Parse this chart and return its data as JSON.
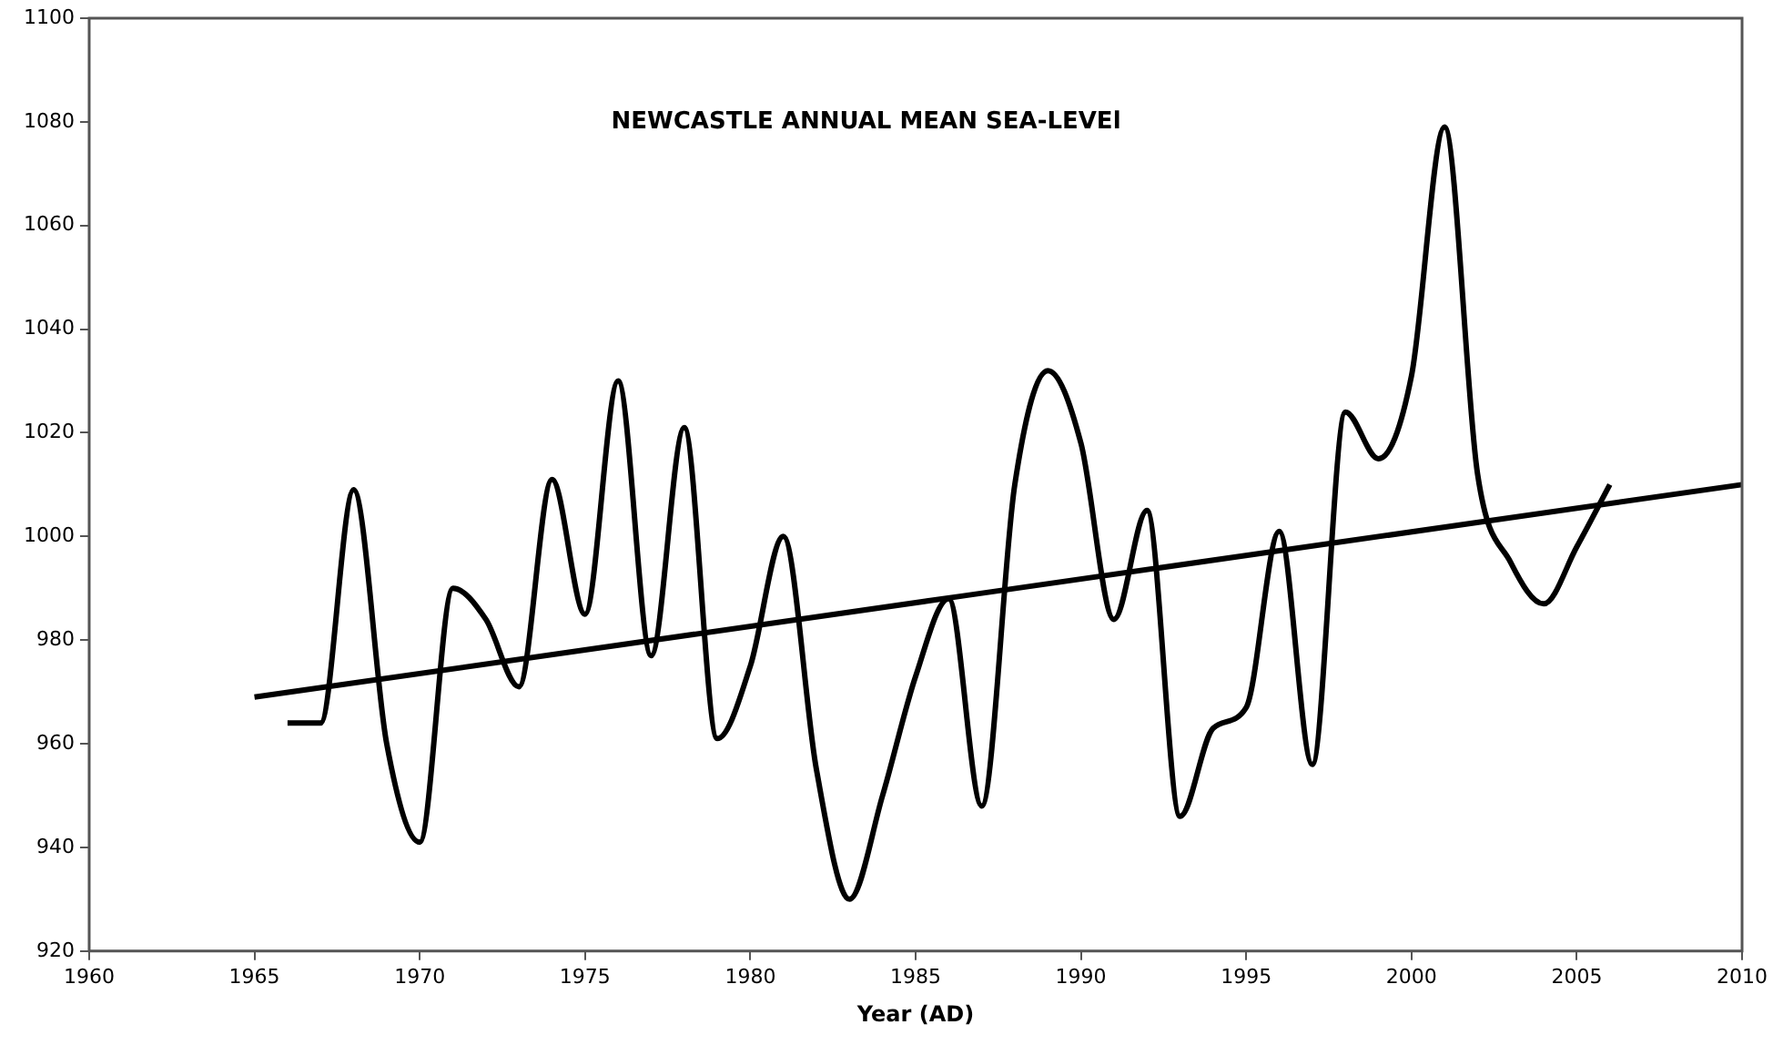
{
  "chart_data": {
    "type": "line",
    "title": "NEWCASTLE ANNUAL MEAN SEA-LEVEl",
    "xlabel": "Year (AD)",
    "x": [
      1966,
      1967,
      1968,
      1969,
      1970,
      1971,
      1972,
      1973,
      1974,
      1975,
      1976,
      1977,
      1978,
      1979,
      1980,
      1981,
      1982,
      1983,
      1984,
      1985,
      1986,
      1987,
      1988,
      1989,
      1990,
      1991,
      1992,
      1993,
      1994,
      1995,
      1996,
      1997,
      1998,
      1999,
      2000,
      2001,
      2002,
      2003,
      2004,
      2005,
      2006
    ],
    "series": [
      {
        "color": "#000000",
        "values": [
          964,
          964,
          1009,
          960,
          941,
          990,
          984,
          971,
          1011,
          985,
          1030,
          977,
          1021,
          961,
          975,
          1000,
          955,
          930,
          950,
          973,
          988,
          948,
          1010,
          1032,
          1018,
          984,
          1005,
          946,
          963,
          967,
          1001,
          956,
          1024,
          1015,
          1031,
          1079,
          1012,
          995,
          987,
          998,
          1010
        ]
      },
      {
        "type": "line",
        "color": "#000000",
        "x": [
          1965,
          2010
        ],
        "values": [
          969,
          1010
        ]
      }
    ],
    "xlim": [
      1960,
      2010
    ],
    "xticks": [
      1960,
      1965,
      1970,
      1975,
      1980,
      1985,
      1990,
      1995,
      2000,
      2005,
      2010
    ],
    "ylim": [
      920,
      1100
    ],
    "yticks": [
      920,
      940,
      960,
      980,
      1000,
      1020,
      1040,
      1060,
      1080,
      1100
    ],
    "grid": false,
    "legend": false,
    "marker": "none",
    "line_style": "solid"
  }
}
